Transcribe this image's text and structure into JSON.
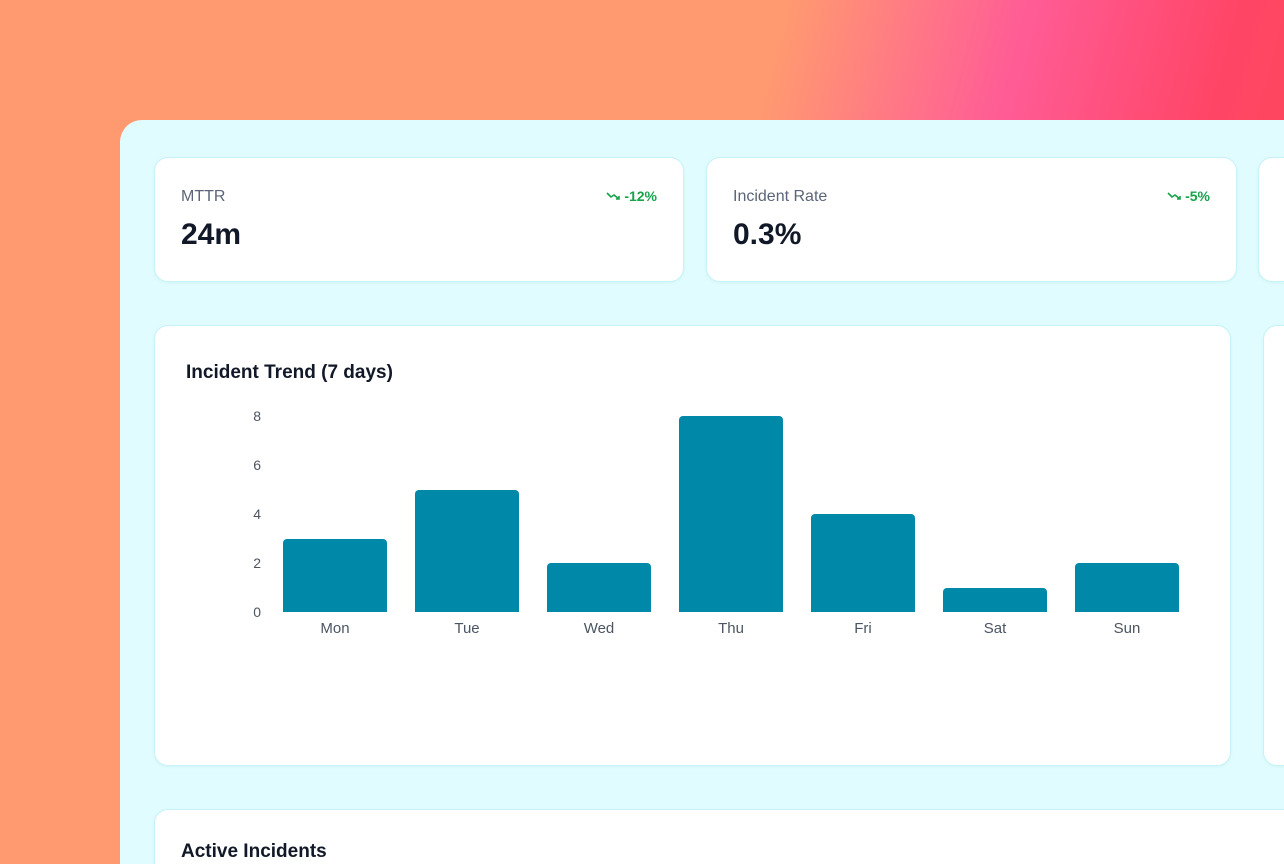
{
  "kpis": [
    {
      "label": "MTTR",
      "value": "24m",
      "delta": "-12%",
      "trend_icon": "trending-down-icon"
    },
    {
      "label": "Incident Rate",
      "value": "0.3%",
      "delta": "-5%",
      "trend_icon": "trending-down-icon"
    }
  ],
  "colors": {
    "accent": "#0088a8",
    "positive": "#16a34a",
    "panel": "#e1fcfe"
  },
  "chart_data": {
    "type": "bar",
    "title": "Incident Trend (7 days)",
    "categories": [
      "Mon",
      "Tue",
      "Wed",
      "Thu",
      "Fri",
      "Sat",
      "Sun"
    ],
    "values": [
      3,
      5,
      2,
      8,
      4,
      1,
      2
    ],
    "yticks": [
      "0",
      "2",
      "4",
      "6",
      "8"
    ],
    "ylim": [
      0,
      8
    ],
    "grid": false
  },
  "incidents": {
    "title": "Active Incidents"
  }
}
